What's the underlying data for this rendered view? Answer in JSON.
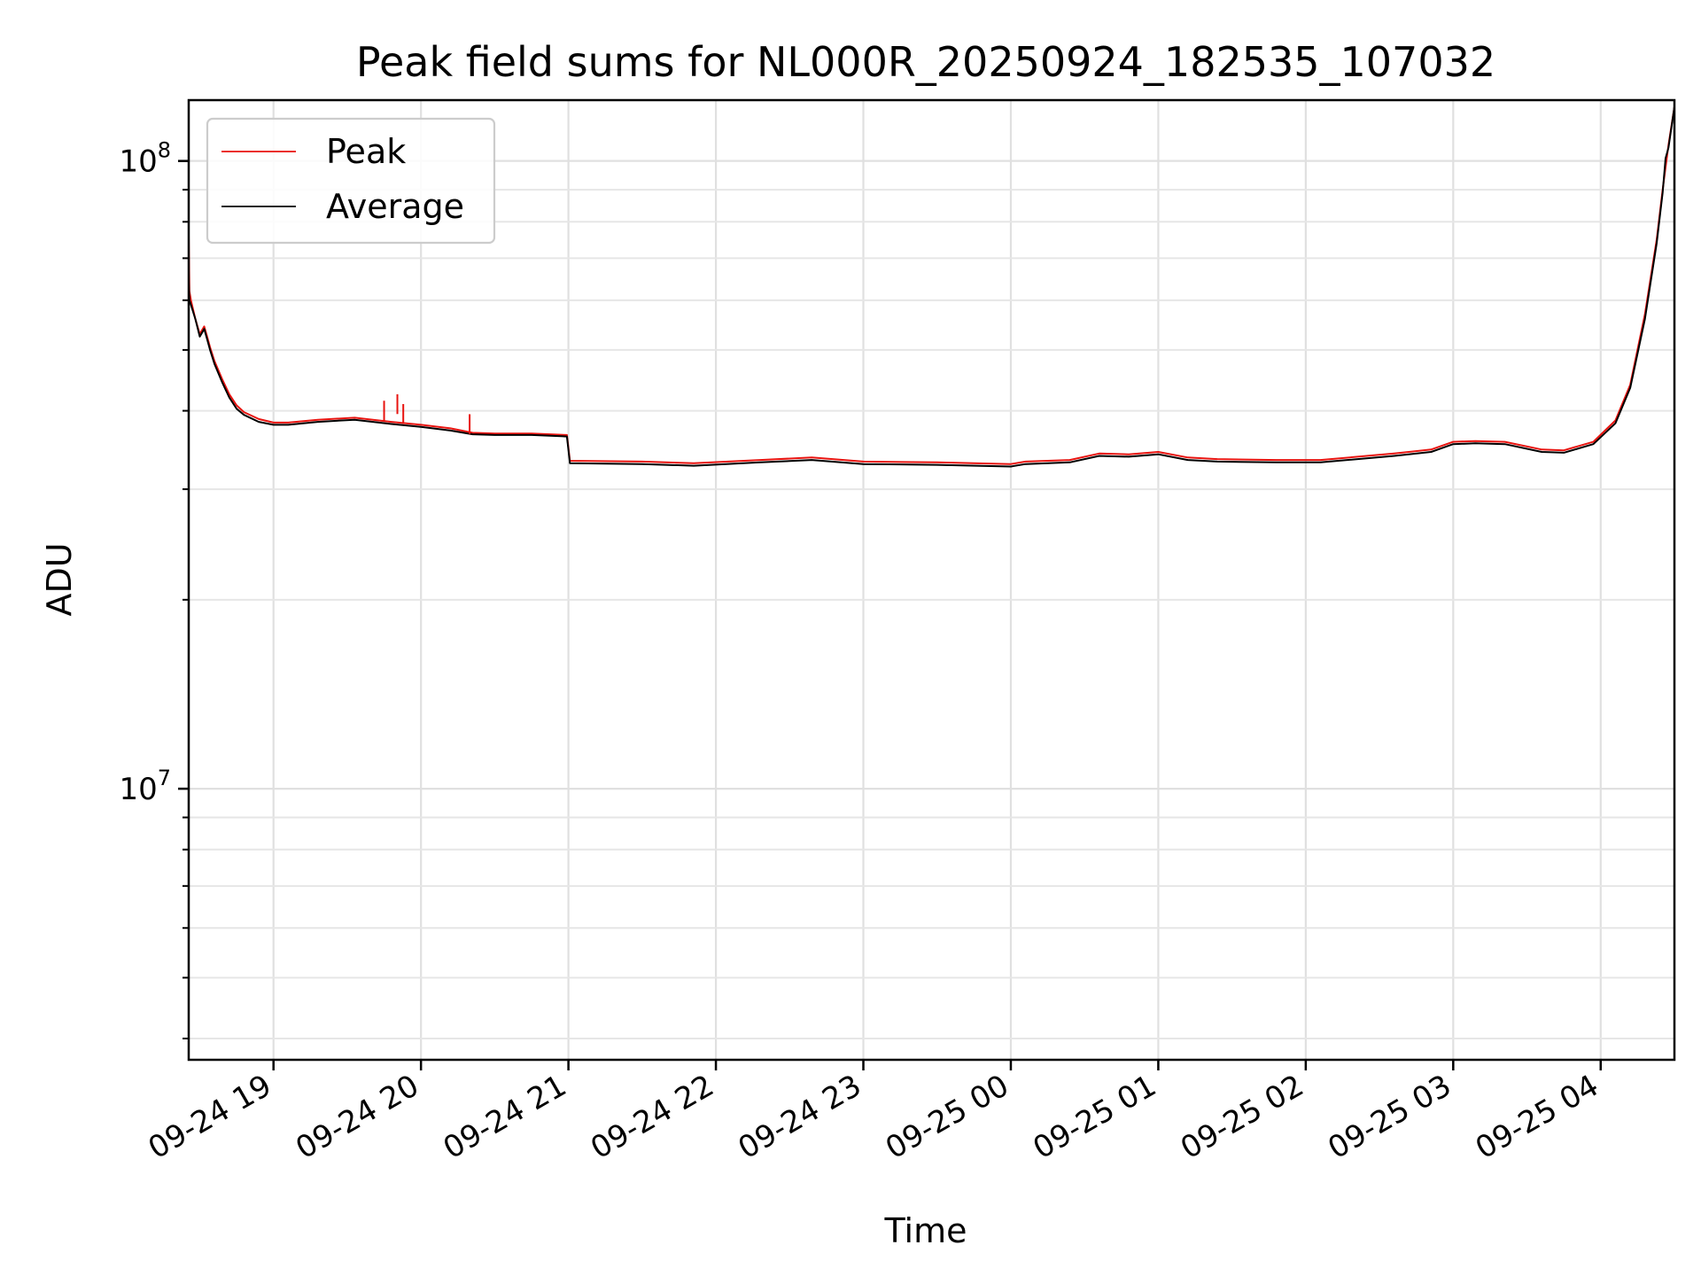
{
  "chart_data": {
    "type": "line",
    "title": "Peak field sums for NL000R_20250924_182535_107032",
    "xlabel": "Time",
    "ylabel": "ADU",
    "yscale": "log",
    "ylim": [
      3700000,
      125000000
    ],
    "xlim_hours": [
      -0.575,
      9.5
    ],
    "x_unit": "hours since 09-24 19:00",
    "grid": true,
    "legend_position": "top-left",
    "x_ticks": [
      {
        "value": 0,
        "label": "09-24 19"
      },
      {
        "value": 1,
        "label": "09-24 20"
      },
      {
        "value": 2,
        "label": "09-24 21"
      },
      {
        "value": 3,
        "label": "09-24 22"
      },
      {
        "value": 4,
        "label": "09-24 23"
      },
      {
        "value": 5,
        "label": "09-25 00"
      },
      {
        "value": 6,
        "label": "09-25 01"
      },
      {
        "value": 7,
        "label": "09-25 02"
      },
      {
        "value": 8,
        "label": "09-25 03"
      },
      {
        "value": 9,
        "label": "09-25 04"
      }
    ],
    "y_ticks": [
      {
        "value": 10000000,
        "base": "10",
        "exp": "7"
      },
      {
        "value": 100000000,
        "base": "10",
        "exp": "8"
      }
    ],
    "series": [
      {
        "name": "Peak",
        "color": "#e8130f",
        "x": [
          -0.575,
          -0.57,
          -0.56,
          -0.53,
          -0.5,
          -0.47,
          -0.45,
          -0.43,
          -0.4,
          -0.35,
          -0.3,
          -0.25,
          -0.2,
          -0.1,
          0.0,
          0.1,
          0.3,
          0.55,
          0.8,
          1.0,
          1.2,
          1.35,
          1.5,
          1.75,
          1.99,
          2.01,
          2.5,
          2.85,
          3.3,
          3.65,
          4.0,
          4.5,
          5.0,
          5.1,
          5.4,
          5.6,
          5.8,
          6.0,
          6.2,
          6.4,
          6.8,
          7.1,
          7.6,
          7.85,
          8.0,
          8.15,
          8.35,
          8.6,
          8.75,
          8.95,
          9.1,
          9.2,
          9.3,
          9.38,
          9.42,
          9.46,
          9.5
        ],
        "y": [
          76000000,
          62000000,
          60000000,
          56000000,
          53000000,
          54500000,
          52500000,
          50500000,
          48000000,
          45000000,
          42500000,
          40800000,
          39800000,
          38800000,
          38300000,
          38300000,
          38700000,
          39000000,
          38400000,
          38000000,
          37500000,
          36900000,
          36800000,
          36800000,
          36600000,
          33300000,
          33200000,
          33000000,
          33400000,
          33700000,
          33200000,
          33100000,
          32900000,
          33200000,
          33400000,
          34200000,
          34100000,
          34400000,
          33700000,
          33500000,
          33400000,
          33400000,
          34200000,
          34700000,
          35700000,
          35800000,
          35700000,
          34700000,
          34600000,
          35700000,
          38600000,
          44000000,
          57000000,
          75000000,
          90000000,
          106000000,
          122000000
        ]
      },
      {
        "name": "Average",
        "color": "#000000",
        "x": [
          -0.575,
          -0.57,
          -0.56,
          -0.53,
          -0.5,
          -0.47,
          -0.45,
          -0.43,
          -0.4,
          -0.35,
          -0.3,
          -0.25,
          -0.2,
          -0.1,
          0.0,
          0.1,
          0.3,
          0.55,
          0.8,
          1.0,
          1.2,
          1.35,
          1.5,
          1.75,
          1.99,
          2.01,
          2.5,
          2.85,
          3.3,
          3.65,
          4.0,
          4.5,
          5.0,
          5.1,
          5.4,
          5.6,
          5.8,
          6.0,
          6.2,
          6.4,
          6.8,
          7.1,
          7.6,
          7.85,
          8.0,
          8.15,
          8.35,
          8.6,
          8.75,
          8.95,
          9.1,
          9.2,
          9.3,
          9.38,
          9.42,
          9.44,
          9.46,
          9.5
        ],
        "y": [
          64000000,
          60000000,
          59000000,
          56000000,
          52500000,
          54000000,
          52000000,
          50000000,
          47500000,
          44500000,
          42000000,
          40300000,
          39400000,
          38400000,
          38000000,
          38000000,
          38400000,
          38700000,
          38100000,
          37700000,
          37200000,
          36700000,
          36600000,
          36600000,
          36400000,
          33000000,
          32900000,
          32700000,
          33100000,
          33400000,
          32900000,
          32800000,
          32600000,
          32900000,
          33100000,
          33900000,
          33800000,
          34100000,
          33400000,
          33200000,
          33100000,
          33100000,
          33900000,
          34400000,
          35400000,
          35500000,
          35400000,
          34400000,
          34300000,
          35400000,
          38200000,
          43500000,
          56000000,
          74000000,
          89000000,
          101000000,
          105000000,
          122000000
        ]
      }
    ],
    "peak_spikes": [
      {
        "x": 0.75,
        "y": 41500000
      },
      {
        "x": 0.84,
        "y": 42500000
      },
      {
        "x": 0.88,
        "y": 41000000
      },
      {
        "x": 1.33,
        "y": 39500000
      }
    ]
  }
}
